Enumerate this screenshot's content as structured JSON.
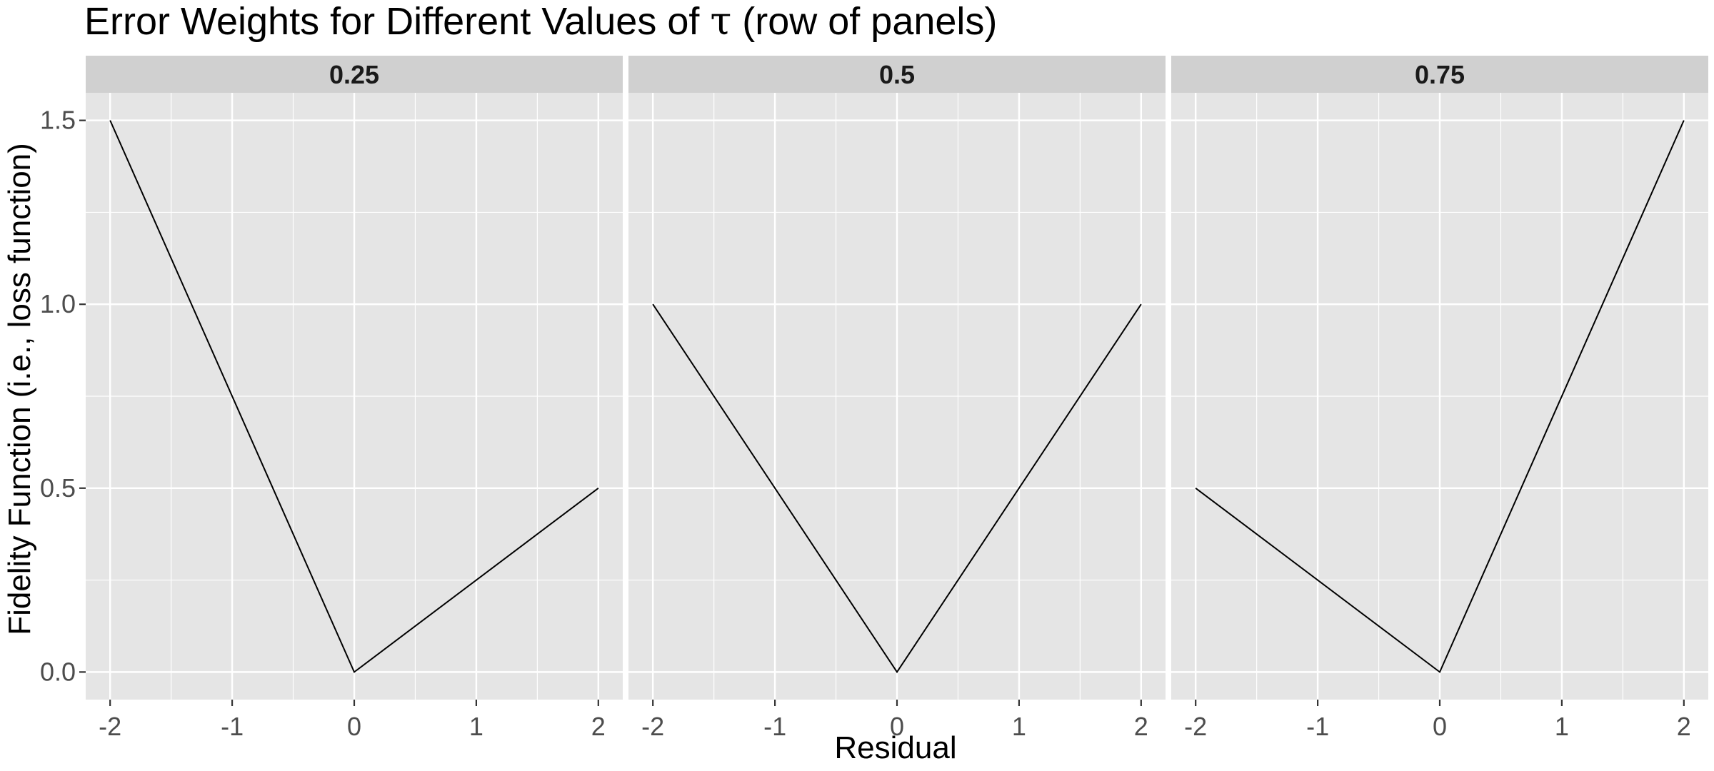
{
  "chart_data": {
    "type": "line",
    "title_prefix": "Error Weights for Different Values of ",
    "title_symbol": "τ",
    "title_suffix": " (row of panels)",
    "xlabel": "Residual",
    "ylabel": "Fidelity Function (i.e., loss function)",
    "xlim": [
      -2.2,
      2.2
    ],
    "ylim": [
      -0.075,
      1.575
    ],
    "x_ticks": [
      -2,
      -1,
      0,
      1,
      2
    ],
    "x_tick_labels": [
      "-2",
      "-1",
      "0",
      "1",
      "2"
    ],
    "y_ticks": [
      0,
      0.5,
      1,
      1.5
    ],
    "y_tick_labels": [
      "0.0",
      "0.5",
      "1.0",
      "1.5"
    ],
    "grid": true,
    "line_color": "#000000",
    "panel_background": "#e5e5e5",
    "strip_background": "#d0d0d0",
    "grid_color": "#ffffff",
    "panels": [
      {
        "label": "0.25",
        "x": [
          -2,
          0,
          2
        ],
        "y": [
          1.5,
          0,
          0.5
        ]
      },
      {
        "label": "0.5",
        "x": [
          -2,
          0,
          2
        ],
        "y": [
          1.0,
          0,
          1.0
        ]
      },
      {
        "label": "0.75",
        "x": [
          -2,
          0,
          2
        ],
        "y": [
          0.5,
          0,
          1.5
        ]
      }
    ]
  }
}
